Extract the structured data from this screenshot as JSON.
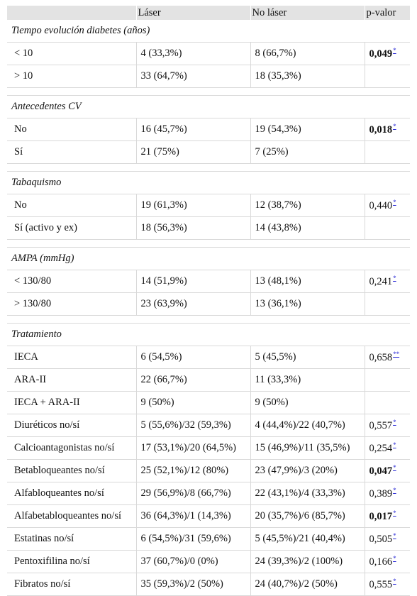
{
  "header": {
    "col0": "",
    "col1": "Láser",
    "col2": "No láser",
    "col3": "p-valor"
  },
  "sections": [
    {
      "title": "Tiempo evolución diabetes (años)",
      "rows": [
        {
          "label": "< 10",
          "laser": "4 (33,3%)",
          "nolaser": "8 (66,7%)",
          "p": "0,049",
          "p_bold": true,
          "ref": "*"
        },
        {
          "label": "> 10",
          "laser": "33 (64,7%)",
          "nolaser": "18 (35,3%)",
          "p": "",
          "p_bold": false,
          "ref": ""
        }
      ]
    },
    {
      "title": "Antecedentes CV",
      "rows": [
        {
          "label": "No",
          "laser": "16 (45,7%)",
          "nolaser": "19 (54,3%)",
          "p": "0,018",
          "p_bold": true,
          "ref": "*"
        },
        {
          "label": "Sí",
          "laser": "21 (75%)",
          "nolaser": "7 (25%)",
          "p": "",
          "p_bold": false,
          "ref": ""
        }
      ]
    },
    {
      "title": "Tabaquismo",
      "rows": [
        {
          "label": "No",
          "laser": "19 (61,3%)",
          "nolaser": "12 (38,7%)",
          "p": "0,440",
          "p_bold": false,
          "ref": "*"
        },
        {
          "label": "Sí (activo y ex)",
          "laser": "18 (56,3%)",
          "nolaser": "14 (43,8%)",
          "p": "",
          "p_bold": false,
          "ref": ""
        }
      ]
    },
    {
      "title": "AMPA (mmHg)",
      "rows": [
        {
          "label": "< 130/80",
          "laser": "14 (51,9%)",
          "nolaser": "13 (48,1%)",
          "p": "0,241",
          "p_bold": false,
          "ref": "*"
        },
        {
          "label": "> 130/80",
          "laser": "23 (63,9%)",
          "nolaser": "13 (36,1%)",
          "p": "",
          "p_bold": false,
          "ref": ""
        }
      ]
    },
    {
      "title": "Tratamiento",
      "rows": [
        {
          "label": "IECA",
          "laser": "6 (54,5%)",
          "nolaser": "5 (45,5%)",
          "p": "0,658",
          "p_bold": false,
          "ref": "**"
        },
        {
          "label": "ARA-II",
          "laser": "22 (66,7%)",
          "nolaser": "11 (33,3%)",
          "p": "",
          "p_bold": false,
          "ref": ""
        },
        {
          "label": "IECA + ARA-II",
          "laser": "9 (50%)",
          "nolaser": "9 (50%)",
          "p": "",
          "p_bold": false,
          "ref": ""
        },
        {
          "label": "Diuréticos no/sí",
          "laser": "5 (55,6%)/32 (59,3%)",
          "nolaser": "4 (44,4%)/22 (40,7%)",
          "p": "0,557",
          "p_bold": false,
          "ref": "*"
        },
        {
          "label": "Calcioantagonistas no/sí",
          "laser": "17 (53,1%)/20 (64,5%)",
          "nolaser": "15 (46,9%)/11 (35,5%)",
          "p": "0,254",
          "p_bold": false,
          "ref": "*"
        },
        {
          "label": "Betabloqueantes no/sí",
          "laser": "25 (52,1%)/12 (80%)",
          "nolaser": "23 (47,9%)/3 (20%)",
          "p": "0,047",
          "p_bold": true,
          "ref": "*"
        },
        {
          "label": "Alfabloqueantes no/sí",
          "laser": "29 (56,9%)/8 (66,7%)",
          "nolaser": "22 (43,1%)/4 (33,3%)",
          "p": "0,389",
          "p_bold": false,
          "ref": "*"
        },
        {
          "label": "Alfabetabloqueantes no/sí",
          "laser": "36 (64,3%)/1 (14,3%)",
          "nolaser": "20 (35,7%)/6 (85,7%)",
          "p": "0,017",
          "p_bold": true,
          "ref": "*"
        },
        {
          "label": "Estatinas no/sí",
          "laser": "6 (54,5%)/31 (59,6%)",
          "nolaser": "5 (45,5%)/21 (40,4%)",
          "p": "0,505",
          "p_bold": false,
          "ref": "*"
        },
        {
          "label": "Pentoxifilina no/sí",
          "laser": "37 (60,7%)/0 (0%)",
          "nolaser": "24 (39,3%)/2 (100%)",
          "p": "0,166",
          "p_bold": false,
          "ref": "*"
        },
        {
          "label": "Fibratos no/sí",
          "laser": "35 (59,3%)/2 (50%)",
          "nolaser": "24 (40,7%)/2 (50%)",
          "p": "0,555",
          "p_bold": false,
          "ref": "*"
        }
      ]
    }
  ]
}
